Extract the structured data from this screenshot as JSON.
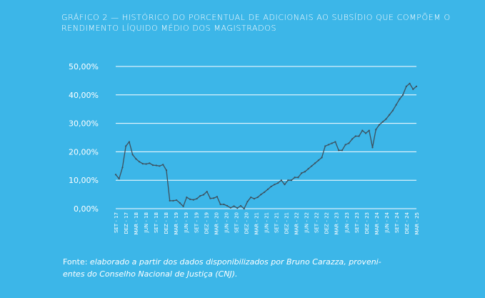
{
  "title": {
    "line1": "Gráfico 2 — Histórico do porcentual de adicionais ao subsídio que compõem o",
    "line2": "rendimento líquido médio dos magistrados"
  },
  "source": {
    "prefix": "Fonte: ",
    "line1": "elaborado a partir dos dados disponibilizados por Bruno Carazza, proveni-",
    "line2": "entes do Conselho Nacional de Justiça (CNJ)."
  },
  "colors": {
    "background": "#3cb6e8",
    "grid": "#ffffff",
    "line": "#3d4f5c",
    "text": "#ffffff"
  },
  "chart_data": {
    "type": "line",
    "title": "Gráfico 2 — Histórico do porcentual de adicionais ao subsídio que compõem o rendimento líquido médio dos magistrados",
    "xlabel": "",
    "ylabel": "",
    "ylim": [
      0,
      50
    ],
    "yticks": [
      "0,00%",
      "10,00%",
      "20,00%",
      "30,00%",
      "40,00%",
      "50,00%"
    ],
    "grid": true,
    "xticks": [
      "SET - 17",
      "DEZ - 17",
      "MAR - 18",
      "JUN - 18",
      "SET - 18",
      "DEZ - 18",
      "MAR - 19",
      "JUN - 19",
      "SET - 19",
      "DEZ - 19",
      "MAR - 20",
      "JUN - 20",
      "SET - 20",
      "DEZ - 20",
      "MAR - 21",
      "JUN - 21",
      "SET - 21",
      "DEZ - 21",
      "MAR - 22",
      "JUN - 22",
      "SET - 22",
      "DEZ - 22",
      "MAR - 23",
      "JUN - 23",
      "SET - 23",
      "DEZ - 23",
      "MAR - 24",
      "JUN - 24",
      "SET - 24",
      "DEZ - 24",
      "MAR - 25"
    ],
    "series": [
      {
        "values": [
          12,
          10.5,
          14.5,
          22,
          23.5,
          19,
          17.5,
          16.5,
          15.8,
          15.7,
          16,
          15.3,
          15.2,
          15,
          15.5,
          13.5,
          2.8,
          2.8,
          3,
          2,
          0.8,
          4,
          3.3,
          3.1,
          3.5,
          4.5,
          4.9,
          6,
          3.6,
          3.7,
          4.2,
          1.5,
          1.5,
          1,
          0.3,
          0.9,
          0.2,
          1,
          0,
          2.5,
          4,
          3.5,
          4,
          5,
          5.8,
          6.8,
          7.8,
          8.5,
          9,
          10,
          8.5,
          10,
          10,
          11,
          11,
          12.5,
          13,
          14,
          15,
          16,
          17,
          18,
          22,
          22.5,
          23,
          23.5,
          20.5,
          20.5,
          22.5,
          23,
          24.5,
          25.5,
          25.5,
          27.5,
          26.5,
          27.5,
          21.5,
          27.8,
          29.5,
          30.5,
          31.5,
          33,
          34.5,
          36.5,
          38.5,
          40,
          43,
          44,
          42,
          43
        ]
      }
    ]
  }
}
